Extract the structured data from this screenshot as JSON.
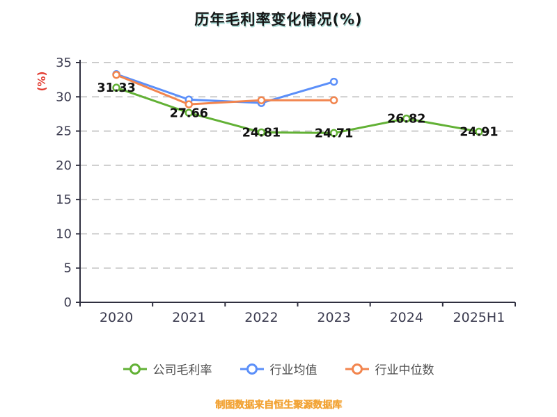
{
  "chart": {
    "title": "历年毛利率变化情况(%)",
    "y_axis_label": "(%)",
    "footer": "制图数据来自恒生聚源数据库"
  },
  "chart_data": {
    "type": "line",
    "title": "历年毛利率变化情况(%)",
    "categories": [
      "2020",
      "2021",
      "2022",
      "2023",
      "2024",
      "2025H1"
    ],
    "series": [
      {
        "name": "公司毛利率",
        "color": "#62b135",
        "values": [
          31.33,
          27.66,
          24.81,
          24.71,
          26.82,
          24.91
        ],
        "data_labels": true
      },
      {
        "name": "行业均值",
        "color": "#5b8ff9",
        "values": [
          33.3,
          29.6,
          29.1,
          32.2,
          null,
          null
        ],
        "data_labels": false
      },
      {
        "name": "行业中位数",
        "color": "#f2854e",
        "values": [
          33.2,
          28.9,
          29.5,
          29.5,
          null,
          null
        ],
        "data_labels": false
      }
    ],
    "ylim": [
      0,
      35
    ],
    "y_ticks": [
      0,
      5,
      10,
      15,
      20,
      25,
      30,
      35
    ],
    "grid": "dashed-horizontal",
    "legend_position": "bottom",
    "axis_color": "#2f2f3f",
    "grid_color": "#cccccc",
    "tick_label_color": "#3c3c50",
    "data_label_color": "#111111"
  }
}
